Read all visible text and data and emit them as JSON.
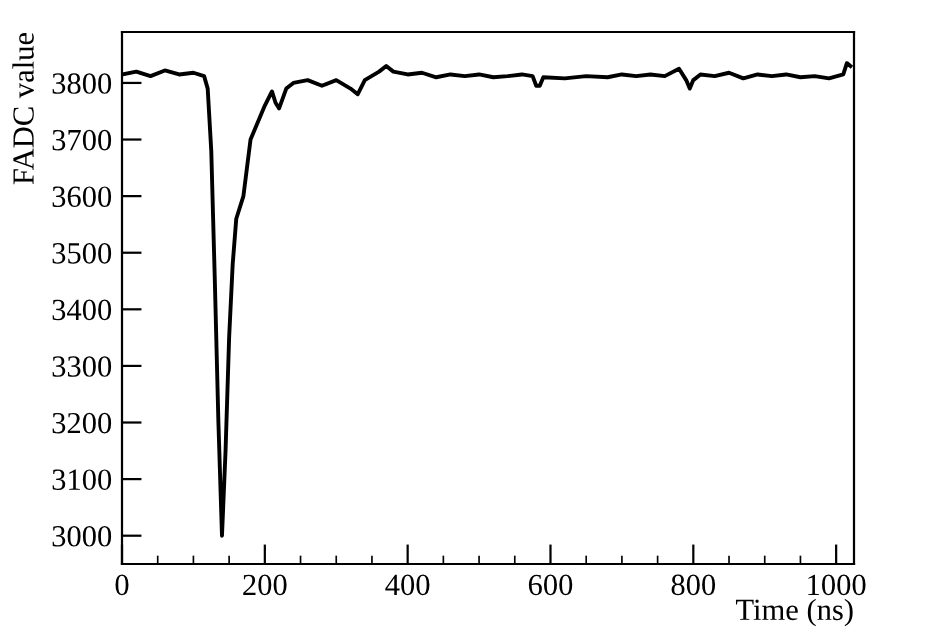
{
  "chart_data": {
    "type": "line",
    "xlabel": "Time (ns)",
    "ylabel": "FADC value",
    "xlim": [
      0,
      1025
    ],
    "ylim": [
      2950,
      3890
    ],
    "xticks": [
      0,
      {
        "value": 50,
        "label": null
      },
      200,
      {
        "value": 100,
        "label": null
      },
      {
        "value": 150,
        "label": null
      },
      {
        "value": 250,
        "label": null
      },
      {
        "value": 300,
        "label": null
      },
      {
        "value": 350,
        "label": null
      },
      400,
      {
        "value": 450,
        "label": null
      },
      {
        "value": 500,
        "label": null
      },
      {
        "value": 550,
        "label": null
      },
      600,
      {
        "value": 650,
        "label": null
      },
      {
        "value": 700,
        "label": null
      },
      {
        "value": 750,
        "label": null
      },
      800,
      {
        "value": 850,
        "label": null
      },
      {
        "value": 900,
        "label": null
      },
      {
        "value": 950,
        "label": null
      },
      1000
    ],
    "yticks": [
      3000,
      3100,
      3200,
      3300,
      3400,
      3500,
      3600,
      3700,
      3800
    ],
    "grid": false,
    "legend": false,
    "marker": "none",
    "line_style": "solid",
    "series": [
      {
        "color": "#000000",
        "x": [
          0,
          20,
          40,
          60,
          80,
          100,
          115,
          120,
          125,
          130,
          135,
          140,
          145,
          150,
          155,
          160,
          170,
          175,
          180,
          190,
          200,
          210,
          215,
          220,
          230,
          240,
          260,
          280,
          300,
          320,
          330,
          340,
          360,
          370,
          380,
          400,
          420,
          440,
          460,
          480,
          500,
          520,
          540,
          560,
          575,
          580,
          585,
          590,
          620,
          650,
          680,
          700,
          720,
          740,
          760,
          780,
          790,
          795,
          800,
          810,
          830,
          850,
          870,
          890,
          910,
          930,
          950,
          970,
          990,
          1010,
          1015,
          1020
        ],
        "values": [
          3815,
          3820,
          3812,
          3822,
          3815,
          3818,
          3812,
          3790,
          3680,
          3450,
          3200,
          3000,
          3150,
          3350,
          3480,
          3560,
          3600,
          3650,
          3700,
          3730,
          3760,
          3785,
          3765,
          3755,
          3790,
          3800,
          3805,
          3795,
          3805,
          3790,
          3780,
          3805,
          3820,
          3830,
          3820,
          3815,
          3818,
          3810,
          3815,
          3812,
          3815,
          3810,
          3812,
          3815,
          3812,
          3795,
          3795,
          3810,
          3808,
          3812,
          3810,
          3815,
          3812,
          3815,
          3812,
          3825,
          3805,
          3790,
          3805,
          3815,
          3812,
          3818,
          3808,
          3815,
          3812,
          3815,
          3810,
          3812,
          3808,
          3815,
          3835,
          3830
        ]
      }
    ]
  }
}
